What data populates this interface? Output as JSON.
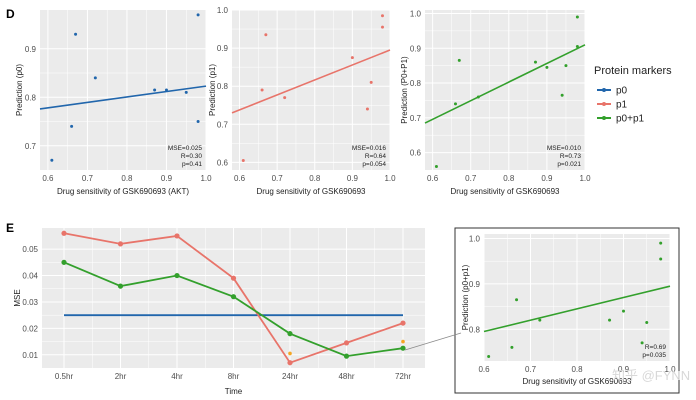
{
  "colors": {
    "p0": "#2166ac",
    "p1": "#e8746a",
    "p0p1": "#33a02c",
    "orange_marker": "#f5a623",
    "panel_bg": "#ebebeb",
    "grid": "#ffffff"
  },
  "labels": {
    "panel_d": "D",
    "panel_e": "E",
    "legend_title": "Protein markers",
    "legend_items": [
      "p0",
      "p1",
      "p0+p1"
    ],
    "watermark": "知乎 @FYNN"
  },
  "chart_data": [
    {
      "id": "d1",
      "type": "scatter",
      "xlabel": "Drug sensitivity of GSK690693 (AKT)",
      "ylabel": "Prediction (p0)",
      "xlim": [
        0.58,
        1.0
      ],
      "ylim": [
        0.65,
        0.98
      ],
      "xticks": [
        "0.6",
        "0.7",
        "0.8",
        "0.9",
        "1.0"
      ],
      "yticks": [
        "0.7",
        "0.8",
        "0.9"
      ],
      "x": [
        0.61,
        0.67,
        0.72,
        0.66,
        0.87,
        0.9,
        0.95,
        0.98,
        0.98
      ],
      "y": [
        0.67,
        0.93,
        0.84,
        0.74,
        0.815,
        0.815,
        0.81,
        0.97,
        0.75
      ],
      "fit": {
        "x": [
          0.58,
          1.0
        ],
        "y": [
          0.776,
          0.823
        ]
      },
      "stats": [
        "MSE=0.025",
        "R=0.30",
        "p=0.41"
      ],
      "color_key": "p0"
    },
    {
      "id": "d2",
      "type": "scatter",
      "xlabel": "Drug sensitivity of GSK690693",
      "ylabel": "Prediction (p1)",
      "xlim": [
        0.58,
        1.0
      ],
      "ylim": [
        0.58,
        1.0
      ],
      "xticks": [
        "0.6",
        "0.7",
        "0.8",
        "0.9",
        "1.0"
      ],
      "yticks": [
        "0.6",
        "0.7",
        "0.8",
        "0.9",
        "1.0"
      ],
      "x": [
        0.61,
        0.66,
        0.67,
        0.72,
        0.9,
        0.95,
        0.98,
        0.98,
        0.94
      ],
      "y": [
        0.605,
        0.79,
        0.935,
        0.77,
        0.875,
        0.81,
        0.985,
        0.955,
        0.74
      ],
      "fit": {
        "x": [
          0.58,
          1.0
        ],
        "y": [
          0.73,
          0.895
        ]
      },
      "stats": [
        "MSE=0.016",
        "R=0.64",
        "p=0.054"
      ],
      "color_key": "p1"
    },
    {
      "id": "d3",
      "type": "scatter",
      "xlabel": "Drug sensitivity of GSK690693",
      "ylabel": "Prediction (P0+P1)",
      "xlim": [
        0.58,
        1.0
      ],
      "ylim": [
        0.55,
        1.01
      ],
      "xticks": [
        "0.6",
        "0.7",
        "0.8",
        "0.9",
        "1.0"
      ],
      "yticks": [
        "0.6",
        "0.7",
        "0.8",
        "0.9",
        "1.0"
      ],
      "x": [
        0.61,
        0.66,
        0.67,
        0.72,
        0.87,
        0.9,
        0.95,
        0.98,
        0.98,
        0.94
      ],
      "y": [
        0.56,
        0.74,
        0.865,
        0.76,
        0.86,
        0.845,
        0.85,
        0.905,
        0.99,
        0.765
      ],
      "fit": {
        "x": [
          0.58,
          1.0
        ],
        "y": [
          0.685,
          0.91
        ]
      },
      "stats": [
        "MSE=0.010",
        "R=0.73",
        "p=0.021"
      ],
      "color_key": "p0p1"
    },
    {
      "id": "e",
      "type": "line",
      "xlabel": "Time",
      "ylabel": "MSE",
      "categories": [
        "0.5hr",
        "2hr",
        "4hr",
        "8hr",
        "24hr",
        "48hr",
        "72hr"
      ],
      "ylim": [
        0.005,
        0.058
      ],
      "yticks": [
        "0.01",
        "0.02",
        "0.03",
        "0.04",
        "0.05"
      ],
      "series": [
        {
          "key": "p0",
          "values": [
            0.025,
            0.025,
            0.025,
            0.025,
            0.025,
            0.025,
            0.025
          ],
          "points": false
        },
        {
          "key": "p1",
          "values": [
            0.056,
            0.052,
            0.055,
            0.039,
            0.007,
            0.0145,
            0.022
          ],
          "points": true
        },
        {
          "key": "p0p1",
          "values": [
            0.045,
            0.036,
            0.04,
            0.032,
            0.018,
            0.0095,
            0.0125
          ],
          "points": true
        }
      ],
      "orange_markers": [
        {
          "x": 4,
          "y": 0.0105
        },
        {
          "x": 6,
          "y": 0.015
        }
      ]
    },
    {
      "id": "inset",
      "type": "scatter",
      "xlabel": "Drug sensitivity of GSK690693",
      "ylabel": "Prediction (p0+p1)",
      "xlim": [
        0.6,
        1.0
      ],
      "ylim": [
        0.73,
        1.01
      ],
      "xticks": [
        "0.6",
        "0.7",
        "0.8",
        "0.9",
        "1.0"
      ],
      "yticks": [
        "0.8",
        "0.9",
        "1.0"
      ],
      "x": [
        0.61,
        0.66,
        0.67,
        0.72,
        0.87,
        0.9,
        0.95,
        0.98,
        0.98,
        0.94
      ],
      "y": [
        0.74,
        0.76,
        0.865,
        0.82,
        0.82,
        0.84,
        0.815,
        0.99,
        0.955,
        0.77
      ],
      "fit": {
        "x": [
          0.6,
          1.0
        ],
        "y": [
          0.795,
          0.895
        ]
      },
      "stats": [
        "R=0.69",
        "p=0.035"
      ],
      "color_key": "p0p1"
    }
  ]
}
